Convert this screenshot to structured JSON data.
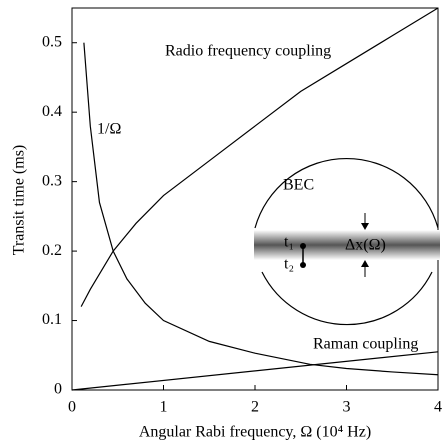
{
  "chart_data": {
    "type": "line",
    "xlabel": "Angular Rabi frequency, Ω (10⁴ Hz)",
    "ylabel": "Transit time (ms)",
    "xlim": [
      0,
      4
    ],
    "xticks": [
      0,
      1,
      2,
      3,
      4
    ],
    "ylim": [
      0,
      0.55
    ],
    "yticks": [
      0,
      0.1,
      0.2,
      0.3,
      0.4,
      0.5
    ],
    "series": [
      {
        "name": "Radio frequency coupling",
        "color": "#000000",
        "x": [
          0.1,
          0.2,
          0.45,
          0.7,
          1,
          1.5,
          2,
          2.5,
          3,
          3.5,
          4
        ],
        "values": [
          0.12,
          0.145,
          0.2,
          0.24,
          0.28,
          0.33,
          0.38,
          0.43,
          0.47,
          0.51,
          0.55
        ]
      },
      {
        "name": "1/Ω",
        "color": "#000000",
        "x": [
          0.13,
          0.2,
          0.3,
          0.45,
          0.6,
          0.8,
          1,
          1.5,
          2,
          2.6,
          3,
          3.5,
          4
        ],
        "values": [
          0.5,
          0.38,
          0.27,
          0.2,
          0.16,
          0.125,
          0.1,
          0.07,
          0.053,
          0.037,
          0.031,
          0.026,
          0.022
        ]
      },
      {
        "name": "Raman coupling",
        "color": "#000000",
        "x": [
          0,
          4
        ],
        "values": [
          0,
          0.055
        ]
      }
    ],
    "inset": {
      "label": "BEC",
      "t1": "t₁",
      "t2": "t₂",
      "width_label": "Δx(Ω)"
    }
  }
}
